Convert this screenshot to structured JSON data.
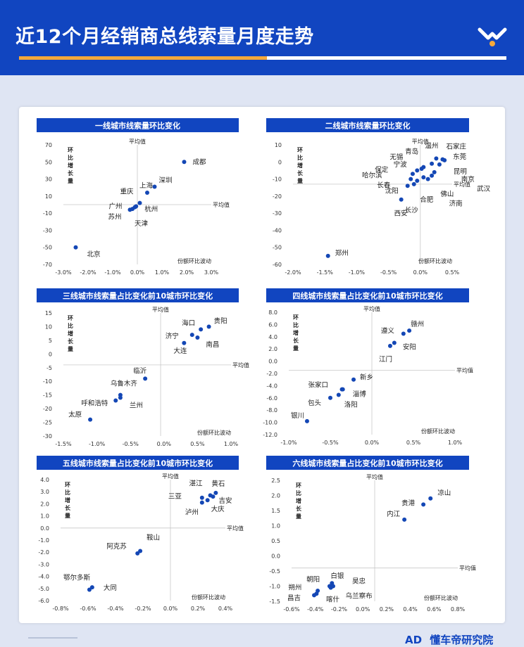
{
  "page": {
    "title": "近12个月经销商总线索量月度走势",
    "footer_brand": "懂车帝研究院",
    "footer_logo_text": "AD"
  },
  "colors": {
    "primary": "#1145c0",
    "accent": "#f5a93b",
    "point": "#1447b5"
  },
  "chart_data": [
    {
      "type": "scatter",
      "title": "一线城市线索量环比变化",
      "ylabel": "环比增长量",
      "xlabel": "份额环比波动",
      "avg_x_label": "平均值",
      "avg_y_label": "平均值",
      "xlim": [
        -3.0,
        3.0
      ],
      "ylim": [
        -70,
        70
      ],
      "xticks": [
        -3.0,
        -2.5,
        -2.0,
        -1.5,
        -1.0,
        -0.5,
        0.0,
        0.5,
        1.0,
        1.5,
        2.0,
        2.5,
        3.0
      ],
      "xtick_labels": [
        "-3.0%",
        "",
        "-2.0%",
        "",
        "-1.0%",
        "",
        "0.0%",
        "",
        "1.0%",
        "",
        "2.0%",
        "",
        "3.0%"
      ],
      "yticks": [
        -70,
        -50,
        -30,
        -10,
        10,
        30,
        50,
        70
      ],
      "ytick_labels": [
        "-70",
        "-50",
        "-30",
        "-10",
        "10",
        "30",
        "50",
        "70"
      ],
      "avg_x": 0.0,
      "avg_y": 0.0,
      "points": [
        {
          "name": "成都",
          "x": 1.9,
          "y": 50,
          "lx": 12,
          "ly": 0
        },
        {
          "name": "深圳",
          "x": 0.7,
          "y": 21,
          "lx": 6,
          "ly": -9
        },
        {
          "name": "上海",
          "x": 0.4,
          "y": 14,
          "lx": -11,
          "ly": -10
        },
        {
          "name": "重庆",
          "x": 0.1,
          "y": 2,
          "lx": -28,
          "ly": -16
        },
        {
          "name": "广州",
          "x": -0.1,
          "y": -3,
          "lx": -37,
          "ly": -1
        },
        {
          "name": "杭州",
          "x": -0.05,
          "y": -2,
          "lx": 12,
          "ly": 4
        },
        {
          "name": "苏州",
          "x": -0.3,
          "y": -6,
          "lx": -31,
          "ly": 10
        },
        {
          "name": "天津",
          "x": -0.2,
          "y": -5,
          "lx": 3,
          "ly": 21
        },
        {
          "name": "北京",
          "x": -2.5,
          "y": -50,
          "lx": 16,
          "ly": 10
        }
      ]
    },
    {
      "type": "scatter",
      "title": "二线城市线索量环比变化",
      "ylabel": "环比增长量",
      "xlabel": "份额环比波动",
      "avg_x_label": "平均值",
      "avg_y_label": "平均值",
      "xlim": [
        -2.0,
        0.5
      ],
      "ylim": [
        -60,
        10
      ],
      "xticks": [
        -2.0,
        -1.5,
        -1.0,
        -0.5,
        0.0,
        0.5
      ],
      "xtick_labels": [
        "-2.0%",
        "-1.5%",
        "-1.0%",
        "-0.5%",
        "0.0%",
        "0.5%"
      ],
      "yticks": [
        -60,
        -50,
        -40,
        -30,
        -20,
        -10,
        0,
        10
      ],
      "ytick_labels": [
        "-60",
        "-50",
        "-40",
        "-30",
        "-20",
        "-10",
        "0",
        "10"
      ],
      "avg_x": 0.0,
      "avg_y": -13,
      "points": [
        {
          "name": "温州",
          "x": 0.25,
          "y": 2,
          "lx": -16,
          "ly": -18
        },
        {
          "name": "石家庄",
          "x": 0.35,
          "y": 1.5,
          "lx": 5,
          "ly": -18
        },
        {
          "name": "东莞",
          "x": 0.38,
          "y": 1,
          "lx": 12,
          "ly": -5
        },
        {
          "name": "青岛",
          "x": 0.18,
          "y": -1,
          "lx": -38,
          "ly": -17
        },
        {
          "name": "昆明",
          "x": 0.3,
          "y": -1.5,
          "lx": 20,
          "ly": 10
        },
        {
          "name": "无锡",
          "x": 0.05,
          "y": -3,
          "lx": -48,
          "ly": -14
        },
        {
          "name": "宁波",
          "x": 0.02,
          "y": -4,
          "lx": -40,
          "ly": -6
        },
        {
          "name": "保定",
          "x": -0.05,
          "y": -5,
          "lx": -60,
          "ly": -1
        },
        {
          "name": "南京",
          "x": 0.22,
          "y": -6,
          "lx": 38,
          "ly": 10
        },
        {
          "name": "哈尔滨",
          "x": -0.12,
          "y": -7,
          "lx": -72,
          "ly": 2
        },
        {
          "name": "长春",
          "x": -0.15,
          "y": -10,
          "lx": -48,
          "ly": 9
        },
        {
          "name": "武汉",
          "x": 0.18,
          "y": -8,
          "lx": 64,
          "ly": 19
        },
        {
          "name": "佛山",
          "x": 0.05,
          "y": -9,
          "lx": 24,
          "ly": 24
        },
        {
          "name": "合肥",
          "x": -0.05,
          "y": -11,
          "lx": 4,
          "ly": 27
        },
        {
          "name": "济南",
          "x": 0.12,
          "y": -10,
          "lx": 30,
          "ly": 35
        },
        {
          "name": "沈阳",
          "x": -0.2,
          "y": -14,
          "lx": -32,
          "ly": 7
        },
        {
          "name": "长沙",
          "x": -0.1,
          "y": -13,
          "lx": -13,
          "ly": 37
        },
        {
          "name": "西安",
          "x": -0.3,
          "y": -22,
          "lx": -10,
          "ly": 20
        },
        {
          "name": "郑州",
          "x": -1.45,
          "y": -55,
          "lx": 10,
          "ly": -4
        }
      ]
    },
    {
      "type": "scatter",
      "title": "三线城市线索量占比变化前10城市环比变化",
      "ylabel": "环比增长量",
      "xlabel": "份额环比波动",
      "avg_x_label": "平均值",
      "avg_y_label": "平均值",
      "xlim": [
        -1.5,
        1.0
      ],
      "ylim": [
        -30,
        15
      ],
      "xticks": [
        -1.5,
        -1.0,
        -0.5,
        0.0,
        0.5,
        1.0
      ],
      "xtick_labels": [
        "-1.5%",
        "-1.0%",
        "-0.5%",
        "0.0%",
        "0.5%",
        "1.0%"
      ],
      "yticks": [
        -30,
        -25,
        -20,
        -15,
        -10,
        -5,
        0,
        5,
        10,
        15
      ],
      "ytick_labels": [
        "-30",
        "-25",
        "-20",
        "-15",
        "-10",
        "-5",
        "0",
        "5",
        "10",
        "15"
      ],
      "avg_x": -0.05,
      "avg_y": -4,
      "points": [
        {
          "name": "海口",
          "x": 0.55,
          "y": 9,
          "lx": -27,
          "ly": -9
        },
        {
          "name": "贵阳",
          "x": 0.67,
          "y": 10,
          "lx": 7,
          "ly": -8
        },
        {
          "name": "济宁",
          "x": 0.42,
          "y": 7,
          "lx": -38,
          "ly": 2
        },
        {
          "name": "南昌",
          "x": 0.5,
          "y": 6,
          "lx": 12,
          "ly": 10
        },
        {
          "name": "大连",
          "x": 0.3,
          "y": 4,
          "lx": -15,
          "ly": 11
        },
        {
          "name": "临沂",
          "x": -0.28,
          "y": -9,
          "lx": -17,
          "ly": -11
        },
        {
          "name": "乌鲁木齐",
          "x": -0.65,
          "y": -15,
          "lx": -14,
          "ly": -16
        },
        {
          "name": "兰州",
          "x": -0.65,
          "y": -16,
          "lx": 13,
          "ly": 11
        },
        {
          "name": "呼和浩特",
          "x": -0.72,
          "y": -17,
          "lx": -49,
          "ly": 4
        },
        {
          "name": "太原",
          "x": -1.1,
          "y": -24,
          "lx": -31,
          "ly": -7
        }
      ]
    },
    {
      "type": "scatter",
      "title": "四线城市线索量占比变化前10城市环比变化",
      "ylabel": "环比增长量",
      "xlabel": "份额环比波动",
      "avg_x_label": "平均值",
      "avg_y_label": "平均值",
      "xlim": [
        -1.0,
        1.0
      ],
      "ylim": [
        -12,
        8
      ],
      "xticks": [
        -1.0,
        -0.5,
        0.0,
        0.5,
        1.0
      ],
      "xtick_labels": [
        "-1.0%",
        "-0.5%",
        "0.0%",
        "0.5%",
        "1.0%"
      ],
      "yticks": [
        -12,
        -10,
        -8,
        -6,
        -4,
        -2,
        0,
        2,
        4,
        6,
        8
      ],
      "ytick_labels": [
        "-12.0",
        "-10.0",
        "-8.0",
        "-6.0",
        "-4.0",
        "-2.0",
        "0.0",
        "2.0",
        "4.0",
        "6.0",
        "8.0"
      ],
      "avg_x": 0.0,
      "avg_y": -1.5,
      "points": [
        {
          "name": "赣州",
          "x": 0.45,
          "y": 5,
          "lx": 2,
          "ly": -9
        },
        {
          "name": "遵义",
          "x": 0.38,
          "y": 4.5,
          "lx": -32,
          "ly": -4
        },
        {
          "name": "安阳",
          "x": 0.27,
          "y": 3,
          "lx": 12,
          "ly": 6
        },
        {
          "name": "江门",
          "x": 0.22,
          "y": 2.5,
          "lx": -16,
          "ly": 19
        },
        {
          "name": "新乡",
          "x": -0.22,
          "y": -3,
          "lx": 9,
          "ly": -3
        },
        {
          "name": "张家口",
          "x": -0.36,
          "y": -4.6,
          "lx": -48,
          "ly": -6
        },
        {
          "name": "淄博",
          "x": -0.35,
          "y": -4.6,
          "lx": 14,
          "ly": 7
        },
        {
          "name": "包头",
          "x": -0.5,
          "y": -6,
          "lx": -32,
          "ly": 7
        },
        {
          "name": "洛阳",
          "x": -0.4,
          "y": -5.5,
          "lx": 8,
          "ly": 14
        },
        {
          "name": "银川",
          "x": -0.78,
          "y": -9.8,
          "lx": -23,
          "ly": -8
        }
      ]
    },
    {
      "type": "scatter",
      "title": "五线城市线索量占比变化前10城市环比变化",
      "ylabel": "环比增长量",
      "xlabel": "份额环比波动",
      "avg_x_label": "平均值",
      "avg_y_label": "平均值",
      "xlim": [
        -0.8,
        0.4
      ],
      "ylim": [
        -6,
        4
      ],
      "xticks": [
        -0.8,
        -0.6,
        -0.4,
        -0.2,
        0.0,
        0.2,
        0.4
      ],
      "xtick_labels": [
        "-0.8%",
        "-0.6%",
        "-0.4%",
        "-0.2%",
        "0.0%",
        "0.2%",
        "0.4%"
      ],
      "yticks": [
        -6,
        -5,
        -4,
        -3,
        -2,
        -1,
        0,
        1,
        2,
        3,
        4
      ],
      "ytick_labels": [
        "-6.0",
        "-5.0",
        "-4.0",
        "-3.0",
        "-2.0",
        "-1.0",
        "0.0",
        "1.0",
        "2.0",
        "3.0",
        "4.0"
      ],
      "avg_x": 0.0,
      "avg_y": 0.0,
      "points": [
        {
          "name": "湛江",
          "x": 0.29,
          "y": 2.7,
          "lx": -30,
          "ly": -17
        },
        {
          "name": "黄石",
          "x": 0.33,
          "y": 2.9,
          "lx": -6,
          "ly": -13
        },
        {
          "name": "三亚",
          "x": 0.23,
          "y": 2.5,
          "lx": -48,
          "ly": -2
        },
        {
          "name": "吉安",
          "x": 0.31,
          "y": 2.6,
          "lx": 8,
          "ly": 6
        },
        {
          "name": "大庆",
          "x": 0.27,
          "y": 2.3,
          "lx": 5,
          "ly": 13
        },
        {
          "name": "泸州",
          "x": 0.23,
          "y": 2.1,
          "lx": -24,
          "ly": 14
        },
        {
          "name": "鞍山",
          "x": -0.22,
          "y": -1.9,
          "lx": 9,
          "ly": -19
        },
        {
          "name": "阿克苏",
          "x": -0.24,
          "y": -2.1,
          "lx": -44,
          "ly": -10
        },
        {
          "name": "鄂尔多斯",
          "x": -0.59,
          "y": -5.1,
          "lx": -37,
          "ly": -17
        },
        {
          "name": "大同",
          "x": -0.57,
          "y": -4.9,
          "lx": 16,
          "ly": 1
        }
      ]
    },
    {
      "type": "scatter",
      "title": "六线城市线索量占比变化前10城市环比变化",
      "ylabel": "环比增长量",
      "xlabel": "份额环比波动",
      "avg_x_label": "平均值",
      "avg_y_label": "平均值",
      "xlim": [
        -0.6,
        0.8
      ],
      "ylim": [
        -1.5,
        2.5
      ],
      "xticks": [
        -0.6,
        -0.4,
        -0.2,
        0.0,
        0.2,
        0.4,
        0.6,
        0.8
      ],
      "xtick_labels": [
        "-0.6%",
        "-0.4%",
        "-0.2%",
        "0.0%",
        "0.2%",
        "0.4%",
        "0.6%",
        "0.8%"
      ],
      "yticks": [
        -1.5,
        -1.0,
        -0.5,
        0.0,
        0.5,
        1.0,
        1.5,
        2.0,
        2.5
      ],
      "ytick_labels": [
        "-1.5",
        "-1.0",
        "-0.5",
        "0.0",
        "0.5",
        "1.0",
        "1.5",
        "2.0",
        "2.5"
      ],
      "avg_x": 0.1,
      "avg_y": -0.4,
      "points": [
        {
          "name": "凉山",
          "x": 0.57,
          "y": 1.9,
          "lx": 10,
          "ly": -8
        },
        {
          "name": "贵港",
          "x": 0.51,
          "y": 1.7,
          "lx": -31,
          "ly": -2
        },
        {
          "name": "内江",
          "x": 0.35,
          "y": 1.2,
          "lx": -25,
          "ly": -8
        },
        {
          "name": "白银",
          "x": -0.26,
          "y": -0.9,
          "lx": -2,
          "ly": -10
        },
        {
          "name": "昊忠",
          "x": -0.25,
          "y": -1.0,
          "lx": 27,
          "ly": -7
        },
        {
          "name": "朝阳",
          "x": -0.38,
          "y": -1.15,
          "lx": -16,
          "ly": -16
        },
        {
          "name": "朔州",
          "x": -0.39,
          "y": -1.25,
          "lx": -40,
          "ly": -9
        },
        {
          "name": "乌兰察布",
          "x": -0.27,
          "y": -1.05,
          "lx": 21,
          "ly": 12
        },
        {
          "name": "昌吉",
          "x": -0.41,
          "y": -1.3,
          "lx": -38,
          "ly": 4
        },
        {
          "name": "喀什",
          "x": -0.28,
          "y": -1.0,
          "lx": -5,
          "ly": 19
        }
      ]
    }
  ]
}
